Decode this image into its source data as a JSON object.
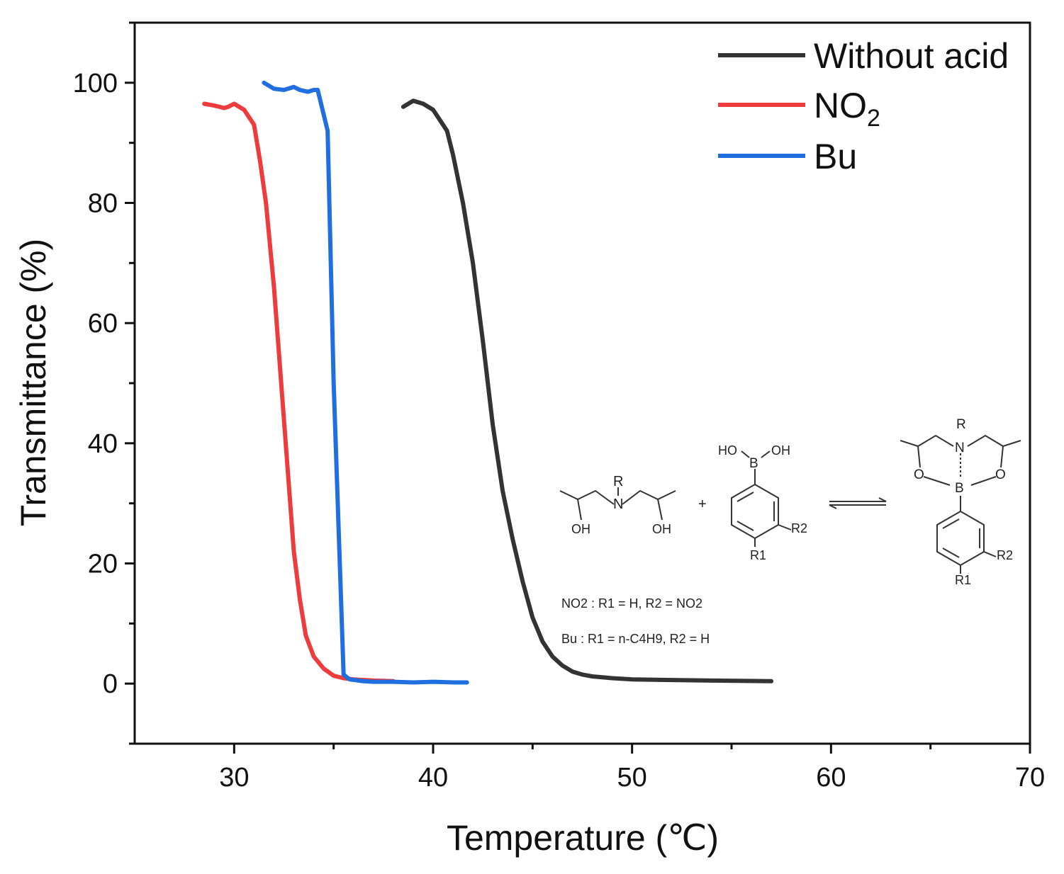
{
  "chart_data": {
    "type": "line",
    "xlabel": "Temperature (℃)",
    "ylabel": "Transmittance (%)",
    "xlim": [
      25,
      70
    ],
    "ylim": [
      -10,
      110
    ],
    "x_ticks": [
      30,
      40,
      50,
      60,
      70
    ],
    "y_ticks": [
      0,
      20,
      40,
      60,
      80,
      100
    ],
    "grid": false,
    "legend_position": "top-right",
    "series": [
      {
        "name": "Without acid",
        "color": "#333333",
        "x": [
          38.5,
          39,
          39.5,
          40,
          40.3,
          40.7,
          41,
          41.5,
          42,
          42.5,
          43,
          43.5,
          44,
          44.5,
          45,
          45.5,
          46,
          46.5,
          47,
          47.5,
          48,
          49,
          50,
          52,
          54,
          57
        ],
        "y": [
          96,
          97,
          96.5,
          95.5,
          94,
          92,
          88,
          80,
          70,
          57,
          43,
          32,
          24,
          17,
          11,
          7,
          4.5,
          3,
          2,
          1.5,
          1.2,
          0.9,
          0.7,
          0.6,
          0.5,
          0.4
        ]
      },
      {
        "name": "NO2",
        "color": "#ee3b3b",
        "x": [
          28.5,
          29,
          29.5,
          29.7,
          30,
          30.5,
          31,
          31.3,
          31.6,
          32,
          32.5,
          33,
          33.3,
          33.6,
          34,
          34.5,
          35,
          35.5,
          36,
          37,
          38
        ],
        "y": [
          96.5,
          96.2,
          95.8,
          96,
          96.5,
          95.5,
          93,
          87,
          80,
          66,
          44,
          22,
          14,
          8,
          4.5,
          2.5,
          1.3,
          0.9,
          0.7,
          0.5,
          0.4
        ]
      },
      {
        "name": "Bu",
        "color": "#1f6fe0",
        "x": [
          31.5,
          32,
          32.5,
          33,
          33.3,
          33.7,
          34,
          34.2,
          34.7,
          35,
          35.5,
          35.8,
          36.5,
          37,
          38,
          39,
          40,
          41,
          41.7
        ],
        "y": [
          100,
          99,
          98.8,
          99.3,
          98.8,
          98.5,
          98.8,
          98.8,
          92,
          50,
          1.5,
          0.7,
          0.4,
          0.3,
          0.3,
          0.2,
          0.3,
          0.2,
          0.2
        ]
      }
    ],
    "legend": [
      "Without acid",
      "NO2",
      "Bu"
    ],
    "scheme": {
      "reactant_r": "R",
      "reactant_n": "N",
      "reactant_oh_left": "OH",
      "reactant_oh_right": "OH",
      "plus": "+",
      "boronic_ho": "HO",
      "boronic_b": "B",
      "boronic_oh": "OH",
      "r1": "R1",
      "r2": "R2",
      "product_r": "R",
      "product_n": "N",
      "product_b": "B",
      "product_o_left": "O",
      "product_o_right": "O",
      "note_no2": "NO2 : R1 = H, R2 = NO2",
      "note_bu": "Bu : R1 = n-C4H9, R2 = H"
    }
  }
}
